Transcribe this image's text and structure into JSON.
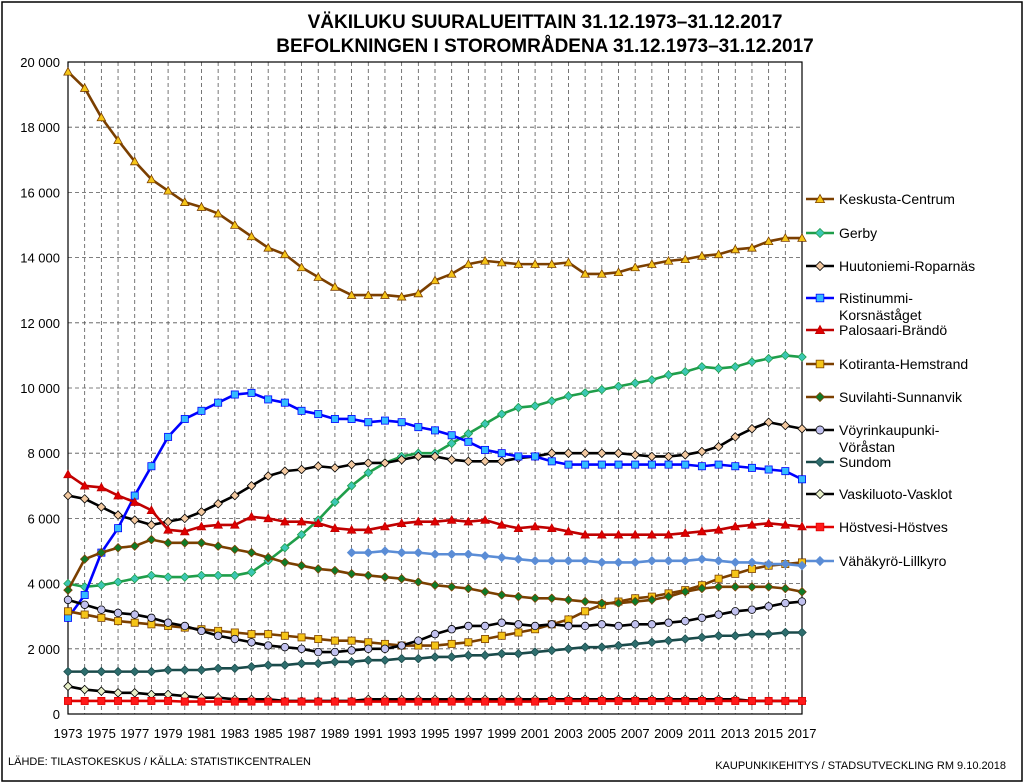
{
  "title_line1": "VÄKILUKU SUURALUEITTAIN 31.12.1973–31.12.2017",
  "title_line2": "BEFOLKNINGEN I STOROMRÅDENA 31.12.1973–31.12.2017",
  "source_note": "LÄHDE: TILASTOKESKUS / KÄLLA: STATISTIKCENTRALEN",
  "credit_note": "KAUPUNKIKEHITYS / STADSUTVECKLING RM 9.10.2018",
  "chart_data": {
    "type": "line",
    "title": "VÄKILUKU SUURALUEITTAIN 31.12.1973–31.12.2017 / BEFOLKNINGEN I STOROMRÅDENA 31.12.1973–31.12.2017",
    "x": [
      1973,
      1974,
      1975,
      1976,
      1977,
      1978,
      1979,
      1980,
      1981,
      1982,
      1983,
      1984,
      1985,
      1986,
      1987,
      1988,
      1989,
      1990,
      1991,
      1992,
      1993,
      1994,
      1995,
      1996,
      1997,
      1998,
      1999,
      2000,
      2001,
      2002,
      2003,
      2004,
      2005,
      2006,
      2007,
      2008,
      2009,
      2010,
      2011,
      2012,
      2013,
      2014,
      2015,
      2016,
      2017
    ],
    "x_tick_labels": [
      "1973",
      "1975",
      "1977",
      "1979",
      "1981",
      "1983",
      "1985",
      "1987",
      "1989",
      "1991",
      "1993",
      "1995",
      "1997",
      "1999",
      "2001",
      "2003",
      "2005",
      "2007",
      "2009",
      "2011",
      "2013",
      "2015",
      "2017"
    ],
    "y_tick_labels": [
      "0",
      "2 000",
      "4 000",
      "6 000",
      "8 000",
      "10 000",
      "12 000",
      "14 000",
      "16 000",
      "18 000",
      "20 000"
    ],
    "ylim": [
      0,
      20000
    ],
    "grid": true,
    "legend_position": "right",
    "series": [
      {
        "name": "Keskusta-Centrum",
        "color": "#7b3f00",
        "marker": "triangle",
        "marker_color": "#f5c518",
        "values": [
          19700,
          19200,
          18300,
          17600,
          16950,
          16400,
          16050,
          15700,
          15550,
          15350,
          15000,
          14650,
          14300,
          14100,
          13700,
          13400,
          13100,
          12850,
          12850,
          12850,
          12800,
          12900,
          13300,
          13500,
          13800,
          13900,
          13850,
          13800,
          13800,
          13800,
          13850,
          13500,
          13500,
          13550,
          13700,
          13800,
          13900,
          13950,
          14050,
          14100,
          14250,
          14300,
          14500,
          14600,
          14600
        ]
      },
      {
        "name": "Gerby",
        "color": "#1f9e4a",
        "marker": "diamond",
        "marker_color": "#3cc7b4",
        "values": [
          4000,
          3900,
          3950,
          4050,
          4150,
          4250,
          4200,
          4200,
          4250,
          4250,
          4250,
          4350,
          4700,
          5100,
          5500,
          5950,
          6500,
          7000,
          7400,
          7700,
          7900,
          8000,
          8000,
          8300,
          8600,
          8900,
          9200,
          9400,
          9450,
          9600,
          9750,
          9850,
          9950,
          10050,
          10150,
          10250,
          10400,
          10500,
          10650,
          10600,
          10650,
          10800,
          10900,
          11000,
          10950
        ]
      },
      {
        "name": "Huutoniemi-Roparnäs",
        "color": "#000000",
        "marker": "diamond",
        "marker_color": "#f3c9a0",
        "values": [
          6700,
          6600,
          6350,
          6100,
          5950,
          5800,
          5900,
          6000,
          6200,
          6450,
          6700,
          7000,
          7300,
          7450,
          7500,
          7600,
          7550,
          7650,
          7700,
          7700,
          7800,
          7900,
          7900,
          7800,
          7750,
          7750,
          7750,
          7850,
          7900,
          8000,
          8000,
          8000,
          8000,
          8000,
          7950,
          7900,
          7900,
          7950,
          8050,
          8200,
          8500,
          8750,
          8950,
          8850,
          8750
        ]
      },
      {
        "name": "Ristinummi-Korsnäståget",
        "color": "#0000ff",
        "marker": "square",
        "marker_color": "#33bbff",
        "values": [
          2950,
          3650,
          4950,
          5700,
          6700,
          7600,
          8500,
          9050,
          9300,
          9550,
          9800,
          9850,
          9650,
          9550,
          9300,
          9200,
          9050,
          9050,
          8950,
          9000,
          8950,
          8800,
          8700,
          8550,
          8350,
          8100,
          8000,
          7900,
          7900,
          7750,
          7650,
          7650,
          7650,
          7650,
          7650,
          7650,
          7650,
          7650,
          7600,
          7650,
          7600,
          7550,
          7500,
          7450,
          7200
        ]
      },
      {
        "name": "Palosaari-Brändö",
        "color": "#c00000",
        "marker": "triangle",
        "marker_color": "#e00000",
        "values": [
          7350,
          7000,
          6950,
          6700,
          6500,
          6250,
          5650,
          5600,
          5750,
          5800,
          5800,
          6050,
          6000,
          5900,
          5900,
          5850,
          5700,
          5650,
          5650,
          5750,
          5850,
          5900,
          5900,
          5950,
          5900,
          5950,
          5800,
          5700,
          5750,
          5700,
          5600,
          5500,
          5500,
          5500,
          5500,
          5500,
          5500,
          5550,
          5600,
          5650,
          5750,
          5800,
          5850,
          5800,
          5750
        ]
      },
      {
        "name": "Kotiranta-Hemstrand",
        "color": "#7b3f00",
        "marker": "square",
        "marker_color": "#f5c518",
        "values": [
          3150,
          3050,
          2950,
          2850,
          2800,
          2750,
          2700,
          2650,
          2600,
          2550,
          2500,
          2450,
          2450,
          2400,
          2350,
          2300,
          2250,
          2250,
          2200,
          2150,
          2100,
          2100,
          2100,
          2150,
          2200,
          2300,
          2400,
          2500,
          2600,
          2750,
          2900,
          3150,
          3350,
          3450,
          3550,
          3600,
          3700,
          3800,
          3950,
          4150,
          4300,
          4450,
          4550,
          4600,
          4650
        ]
      },
      {
        "name": "Suvilahti-Sunnanvik",
        "color": "#7b3f00",
        "marker": "diamond",
        "marker_color": "#0f7a28",
        "values": [
          3800,
          4750,
          4950,
          5100,
          5150,
          5350,
          5250,
          5250,
          5250,
          5150,
          5050,
          4950,
          4800,
          4650,
          4550,
          4450,
          4400,
          4300,
          4250,
          4200,
          4150,
          4050,
          3950,
          3900,
          3850,
          3750,
          3650,
          3600,
          3550,
          3550,
          3500,
          3450,
          3400,
          3400,
          3450,
          3500,
          3600,
          3750,
          3850,
          3900,
          3900,
          3900,
          3900,
          3850,
          3750
        ]
      },
      {
        "name": "Vöyrinkaupunki-Vöråstan",
        "color": "#000000",
        "marker": "circle",
        "marker_color": "#c0c0ee",
        "values": [
          3500,
          3350,
          3200,
          3100,
          3050,
          2950,
          2800,
          2700,
          2550,
          2400,
          2300,
          2200,
          2100,
          2050,
          2000,
          1900,
          1900,
          1950,
          2000,
          2000,
          2100,
          2250,
          2450,
          2600,
          2700,
          2700,
          2800,
          2750,
          2700,
          2750,
          2700,
          2700,
          2750,
          2700,
          2750,
          2750,
          2800,
          2850,
          2950,
          3050,
          3150,
          3200,
          3300,
          3400,
          3450
        ]
      },
      {
        "name": "Sundom",
        "color": "#1a4a4a",
        "marker": "diamond",
        "marker_color": "#2e6e6e",
        "values": [
          1300,
          1300,
          1300,
          1300,
          1300,
          1300,
          1350,
          1350,
          1350,
          1400,
          1400,
          1450,
          1500,
          1500,
          1550,
          1550,
          1600,
          1600,
          1650,
          1650,
          1700,
          1700,
          1750,
          1750,
          1800,
          1800,
          1850,
          1850,
          1900,
          1950,
          2000,
          2050,
          2050,
          2100,
          2150,
          2200,
          2250,
          2300,
          2350,
          2400,
          2400,
          2450,
          2450,
          2500,
          2500
        ]
      },
      {
        "name": "Vaskiluoto-Vasklot",
        "color": "#000000",
        "marker": "diamond",
        "marker_color": "#e8f0c8",
        "values": [
          850,
          750,
          700,
          650,
          650,
          600,
          600,
          550,
          500,
          500,
          450,
          450,
          450,
          400,
          400,
          400,
          400,
          400,
          450,
          450,
          450,
          450,
          450,
          450,
          450,
          450,
          450,
          450,
          450,
          450,
          450,
          450,
          450,
          450,
          450,
          450,
          450,
          450,
          450,
          450,
          450,
          400,
          400,
          400,
          400
        ]
      },
      {
        "name": "Höstvesi-Höstves",
        "color": "#e00000",
        "marker": "square",
        "marker_color": "#ff1a1a",
        "values": [
          400,
          400,
          400,
          400,
          400,
          400,
          400,
          380,
          380,
          380,
          380,
          380,
          380,
          380,
          380,
          380,
          380,
          380,
          380,
          380,
          380,
          380,
          380,
          380,
          380,
          380,
          380,
          380,
          380,
          400,
          400,
          400,
          400,
          400,
          400,
          400,
          400,
          400,
          400,
          400,
          400,
          400,
          400,
          400,
          400
        ]
      },
      {
        "name": "Vähäkyrö-Lillkyro",
        "color": "#5b8dd6",
        "marker": "diamond",
        "marker_color": "#5b8dd6",
        "values": [
          null,
          null,
          null,
          null,
          null,
          null,
          null,
          null,
          null,
          null,
          null,
          null,
          null,
          null,
          null,
          null,
          null,
          4950,
          4950,
          5000,
          4950,
          4950,
          4900,
          4900,
          4900,
          4850,
          4800,
          4750,
          4700,
          4700,
          4700,
          4700,
          4650,
          4650,
          4650,
          4700,
          4700,
          4700,
          4750,
          4700,
          4650,
          4650,
          4600,
          4600,
          4550
        ]
      }
    ]
  }
}
